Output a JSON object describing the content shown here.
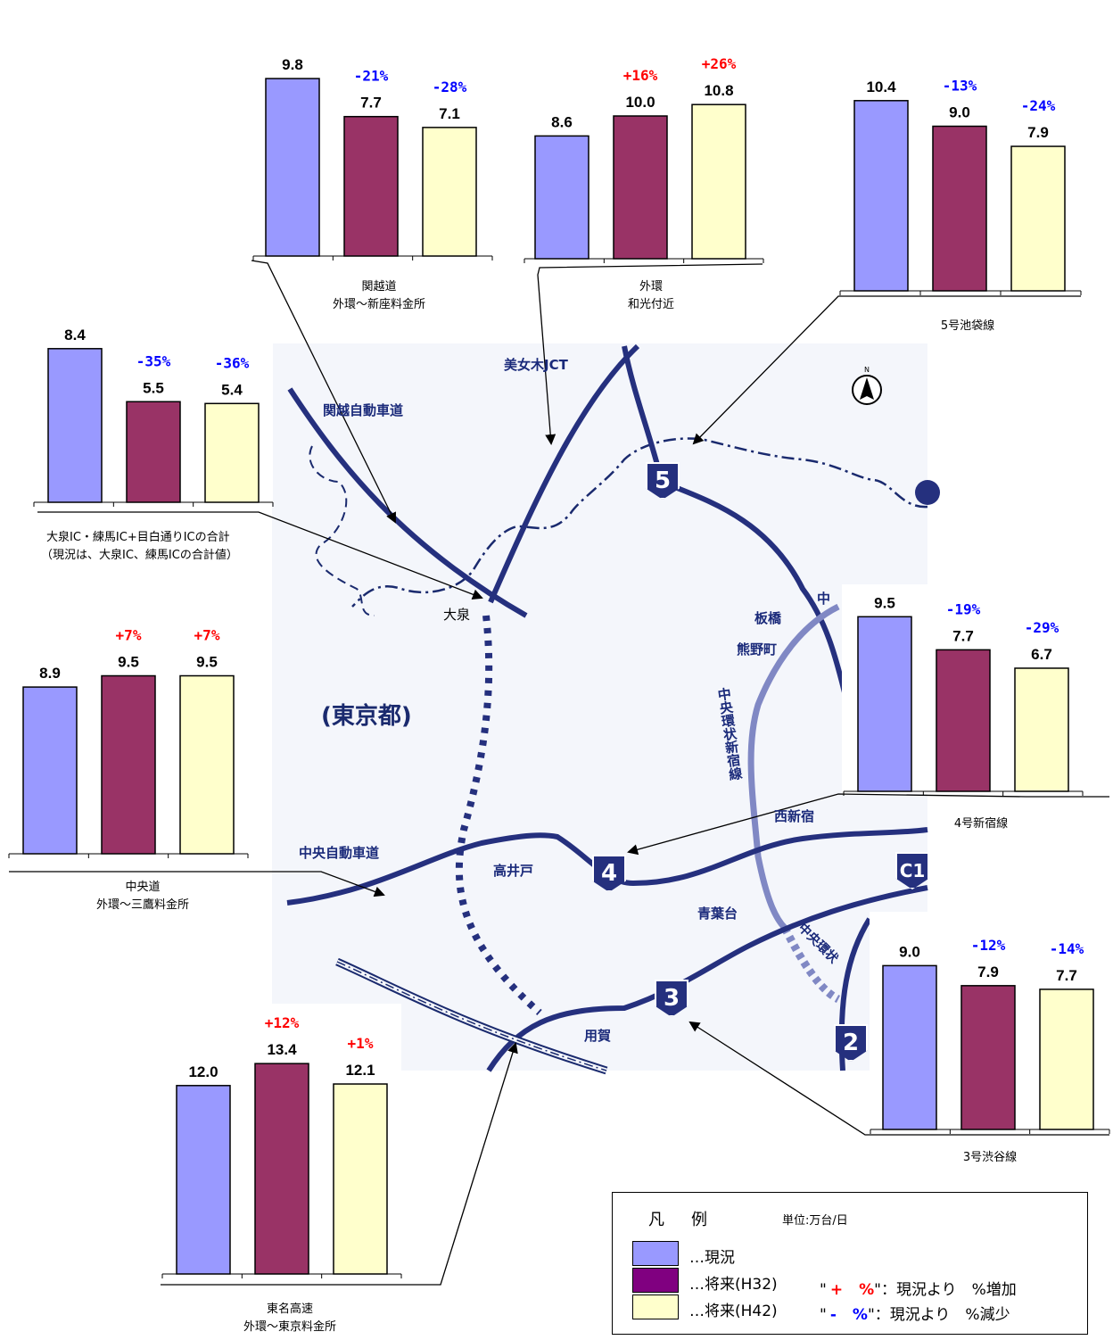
{
  "colors": {
    "current": "#9999ff",
    "future_h32": "#993366",
    "future_h42": "#ffffcc",
    "increase": "#ff0000",
    "decrease": "#0000ff",
    "road": "#25307e",
    "road_light": "#8088c4",
    "map_bg": "#f4f6fb"
  },
  "map": {
    "region_label": "(東京都)",
    "places": {
      "bijogi": "美女木JCT",
      "kanetsu": "関越自動車道",
      "oizumi": "大泉",
      "itabashi": "板橋",
      "kumanocho": "熊野町",
      "chuo_ring": "中央環状新宿線",
      "nishishinjuku": "西新宿",
      "chuo_expwy": "中央自動車道",
      "takaido": "高井戸",
      "aobadai": "青葉台",
      "yoga": "用賀",
      "chuo_a": "中",
      "chuo_b": "中央環状"
    },
    "shields": [
      "5",
      "4",
      "3",
      "2",
      "C1"
    ],
    "north_label": "N"
  },
  "chart_data": [
    {
      "type": "bar",
      "caption": [
        "関越道",
        "外環～新座料金所"
      ],
      "values": [
        9.8,
        7.7,
        7.1
      ],
      "changes": [
        "",
        "-21%",
        "-28%"
      ]
    },
    {
      "type": "bar",
      "caption": [
        "外環",
        "和光付近"
      ],
      "values": [
        8.6,
        10.0,
        10.8
      ],
      "labels": [
        "8.6",
        "10.0",
        "10.8"
      ],
      "changes": [
        "",
        "+16%",
        "+26%"
      ]
    },
    {
      "type": "bar",
      "caption": [
        "5号池袋線"
      ],
      "values": [
        10.4,
        9.0,
        7.9
      ],
      "changes": [
        "",
        "-13%",
        "-24%"
      ]
    },
    {
      "type": "bar",
      "caption": [
        "大泉IC・練馬IC+目白通りICの合計",
        "（現況は、大泉IC、練馬ICの合計値）"
      ],
      "values": [
        8.4,
        5.5,
        5.4
      ],
      "changes": [
        "",
        "-35%",
        "-36%"
      ]
    },
    {
      "type": "bar",
      "caption": [
        "中央道",
        "外環～三鷹料金所"
      ],
      "values": [
        8.9,
        9.5,
        9.5
      ],
      "changes": [
        "",
        "+7%",
        "+7%"
      ]
    },
    {
      "type": "bar",
      "caption": [
        "4号新宿線"
      ],
      "values": [
        9.5,
        7.7,
        6.7
      ],
      "changes": [
        "",
        "-19%",
        "-29%"
      ]
    },
    {
      "type": "bar",
      "caption": [
        "3号渋谷線"
      ],
      "values": [
        9.0,
        7.9,
        7.7
      ],
      "changes": [
        "",
        "-12%",
        "-14%"
      ]
    },
    {
      "type": "bar",
      "caption": [
        "東名高速",
        "外環～東京料金所"
      ],
      "values": [
        12.0,
        13.4,
        12.1
      ],
      "changes": [
        "",
        "+12%",
        "+1%"
      ]
    }
  ],
  "legend": {
    "title_a": "凡",
    "title_b": "例",
    "unit": "単位:万台/日",
    "current": "…現況",
    "h32": "…将来(H32)",
    "h42": "…将来(H42)",
    "plus_q1": "\"",
    "plus_sign": "+",
    "plus_pct": "%",
    "plus_text": "\"：現況より　%増加",
    "minus_q1": "\"",
    "minus_sign": "-",
    "minus_pct": "%",
    "minus_text": "\"：現況より　%減少"
  }
}
